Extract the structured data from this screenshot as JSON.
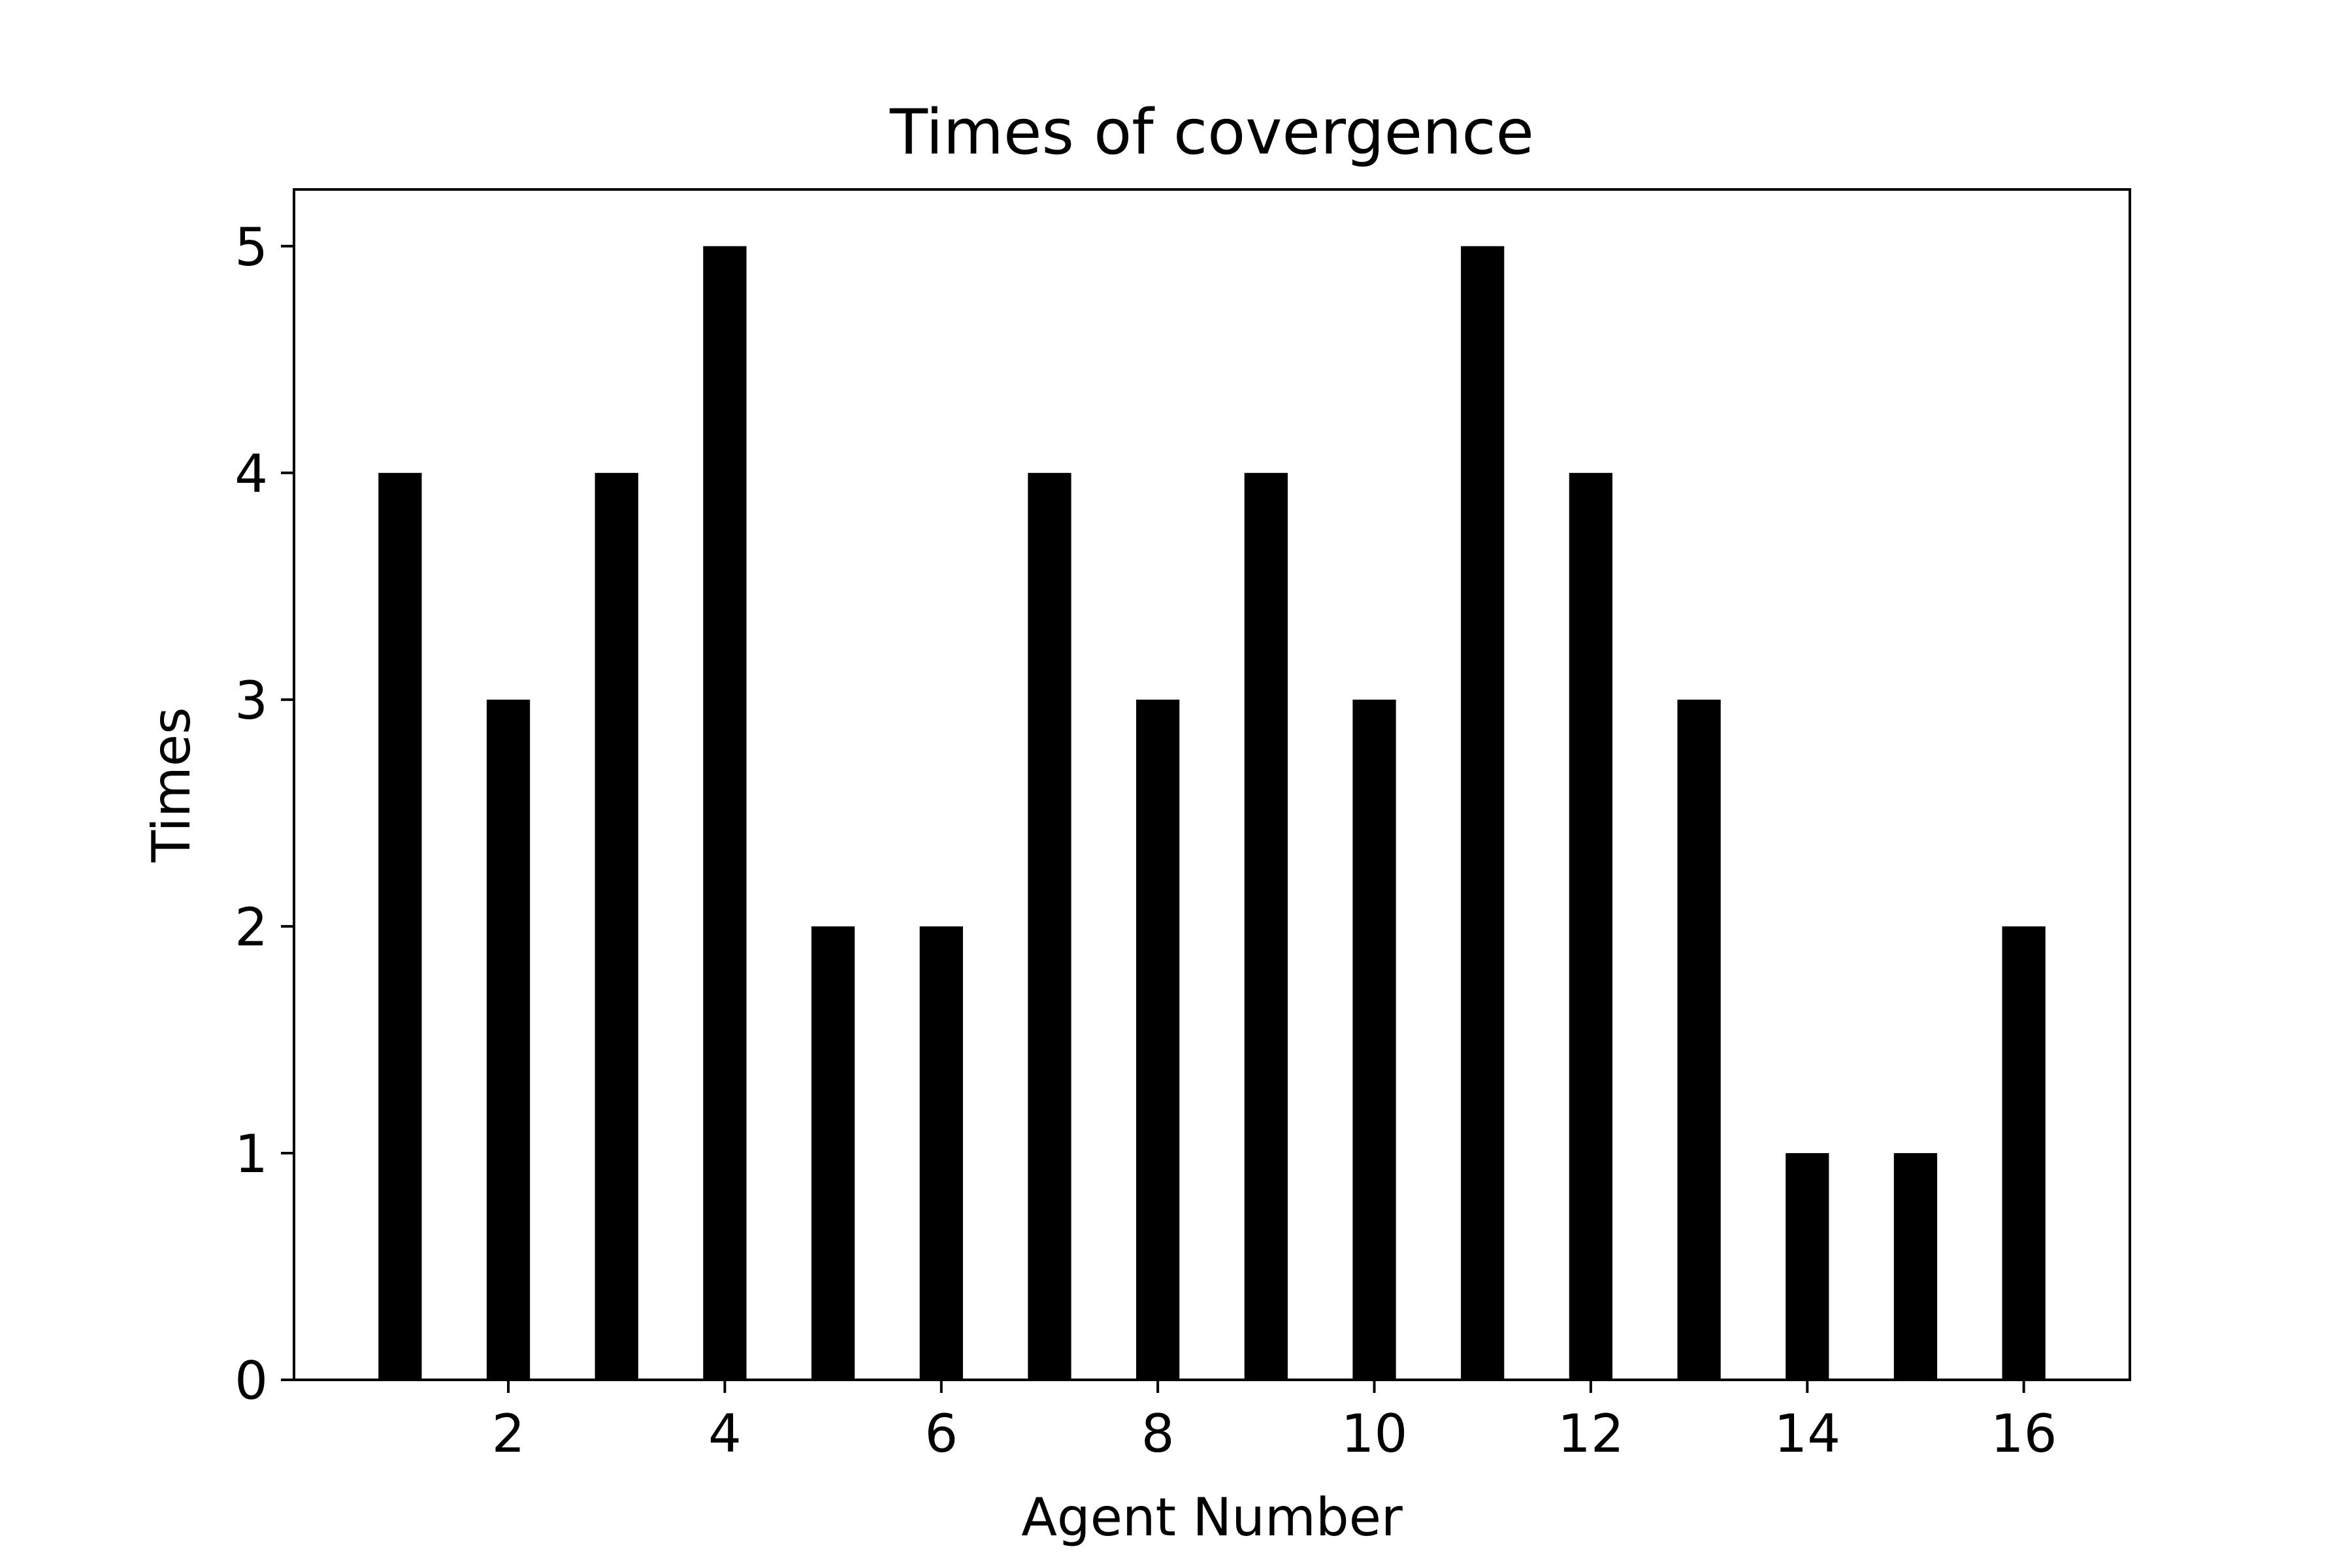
{
  "chart_data": {
    "type": "bar",
    "title": "Times of covergence",
    "xlabel": "Agent Number",
    "ylabel": "Times",
    "x": [
      1,
      2,
      3,
      4,
      5,
      6,
      7,
      8,
      9,
      10,
      11,
      12,
      13,
      14,
      15,
      16
    ],
    "values": [
      4,
      3,
      4,
      5,
      2,
      2,
      4,
      3,
      4,
      3,
      5,
      4,
      3,
      1,
      1,
      2
    ],
    "bar_width": 0.4,
    "xlim": [
      0.02,
      16.98
    ],
    "ylim": [
      0,
      5.25
    ],
    "xticks": [
      2,
      4,
      6,
      8,
      10,
      12,
      14,
      16
    ],
    "yticks": [
      0,
      1,
      2,
      3,
      4,
      5
    ],
    "bar_color": "#000000",
    "grid": false,
    "legend": false
  }
}
